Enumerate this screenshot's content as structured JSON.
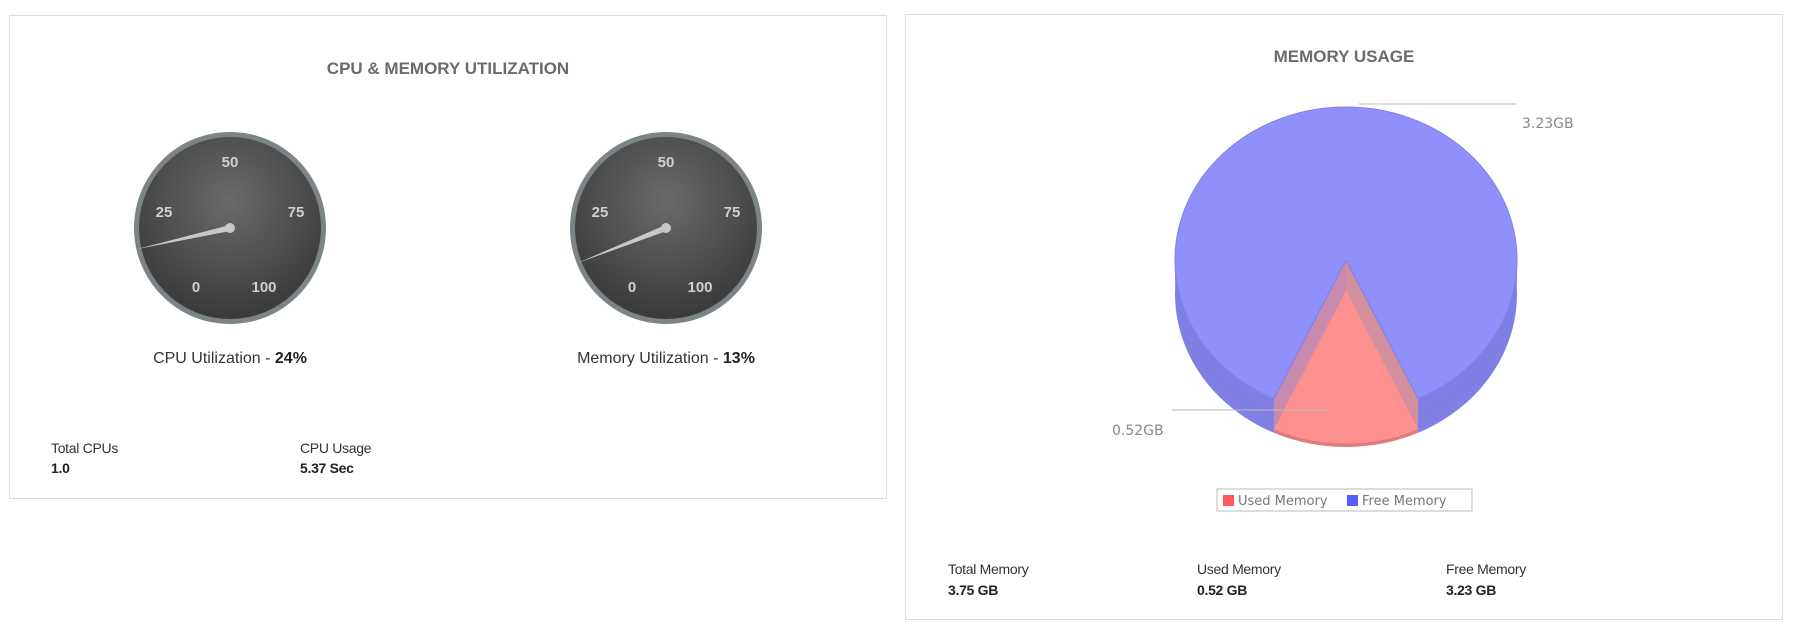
{
  "cpu_memory_card": {
    "title": "CPU & MEMORY UTILIZATION",
    "gauge_ticks": [
      "0",
      "25",
      "50",
      "75",
      "100"
    ],
    "gauges": [
      {
        "label": "CPU Utilization - ",
        "value_text": "24%",
        "value": 24
      },
      {
        "label": "Memory Utilization - ",
        "value_text": "13%",
        "value": 13
      }
    ],
    "stats": [
      {
        "label": "Total CPUs",
        "value": "1.0"
      },
      {
        "label": "CPU Usage",
        "value": "5.37 Sec"
      }
    ]
  },
  "memory_card": {
    "title": "MEMORY USAGE",
    "stats": [
      {
        "label": "Total Memory",
        "value": "3.75 GB"
      },
      {
        "label": "Used Memory",
        "value": "0.52 GB"
      },
      {
        "label": "Free Memory",
        "value": "3.23 GB"
      }
    ]
  },
  "chart_data": {
    "type": "pie",
    "title": "MEMORY USAGE",
    "categories": [
      "Used Memory",
      "Free Memory"
    ],
    "values": [
      0.52,
      3.23
    ],
    "data_labels": [
      "0.52GB",
      "3.23GB"
    ],
    "colors": [
      "#ff5a5a",
      "#5a5aff"
    ],
    "legend": "bottom",
    "style": "3d"
  }
}
